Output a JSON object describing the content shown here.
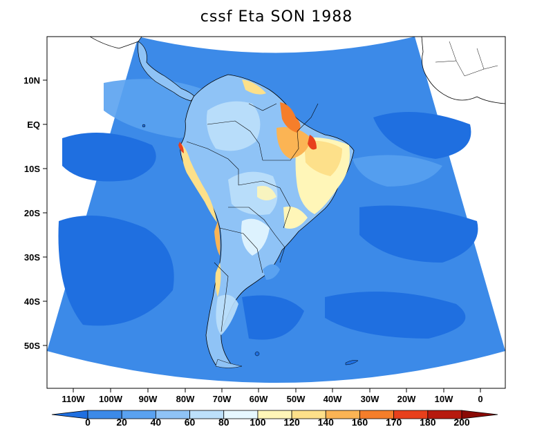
{
  "title": "cssf Eta SON 1988",
  "lat_labels": [
    "10N",
    "EQ",
    "10S",
    "20S",
    "30S",
    "40S",
    "50S"
  ],
  "lon_labels": [
    "110W",
    "100W",
    "90W",
    "80W",
    "70W",
    "60W",
    "50W",
    "40W",
    "30W",
    "20W",
    "10W",
    "0"
  ],
  "colorbar": {
    "labels": [
      "0",
      "20",
      "40",
      "60",
      "80",
      "100",
      "120",
      "140",
      "160",
      "170",
      "180",
      "200"
    ],
    "colors": [
      "#1f6fe0",
      "#3c8ae8",
      "#5aa2f0",
      "#8fc3f6",
      "#bde0fb",
      "#e6f7ff",
      "#fff6b8",
      "#fde08a",
      "#fbb454",
      "#f67e2a",
      "#e8401c",
      "#b71a0e",
      "#8a0a05"
    ]
  },
  "palette": {
    "ocean": "#3c8ae8",
    "ocean_low": "#1f6fe0",
    "land_base": "#8fc3f6",
    "land_light": "#bde0fb",
    "very_light": "#e6f7ff",
    "yellow": "#fff6b8",
    "light_orange": "#fde08a",
    "orange": "#fbb454",
    "dark_orange": "#f67e2a",
    "red": "#e8401c"
  }
}
